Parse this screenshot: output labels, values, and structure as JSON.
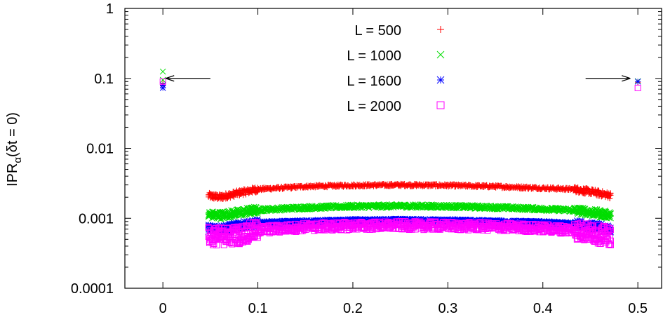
{
  "chart_data": {
    "type": "scatter",
    "title": "",
    "xlabel": "",
    "ylabel": "IPR",
    "ylabel_subscript": "α",
    "ylabel_suffix": "(δt = 0)",
    "ylabel_full": "IPRα(δt = 0)",
    "xlim": [
      -0.04,
      0.525
    ],
    "ylim": [
      0.0001,
      1
    ],
    "yscale": "log",
    "xticks": [
      {
        "value": 0,
        "label": "0"
      },
      {
        "value": 0.1,
        "label": "0.1"
      },
      {
        "value": 0.2,
        "label": "0.2"
      },
      {
        "value": 0.3,
        "label": "0.3"
      },
      {
        "value": 0.4,
        "label": "0.4"
      },
      {
        "value": 0.5,
        "label": "0.5"
      }
    ],
    "yticks": [
      {
        "value": 0.0001,
        "label": "0.0001"
      },
      {
        "value": 0.001,
        "label": "0.001"
      },
      {
        "value": 0.01,
        "label": "0.01"
      },
      {
        "value": 0.1,
        "label": "0.1"
      },
      {
        "value": 1,
        "label": "1"
      }
    ],
    "grid": false,
    "legend_position": "top-center",
    "series": [
      {
        "name": "L = 500",
        "marker": "plus",
        "color": "#ff0000",
        "band_points": [
          [
            0.048,
            0.0021
          ],
          [
            0.06,
            0.002
          ],
          [
            0.08,
            0.0023
          ],
          [
            0.1,
            0.0026
          ],
          [
            0.15,
            0.00285
          ],
          [
            0.2,
            0.00295
          ],
          [
            0.25,
            0.003
          ],
          [
            0.3,
            0.00295
          ],
          [
            0.35,
            0.00285
          ],
          [
            0.4,
            0.0027
          ],
          [
            0.433,
            0.0026
          ],
          [
            0.45,
            0.0024
          ],
          [
            0.465,
            0.0022
          ],
          [
            0.472,
            0.0021
          ]
        ],
        "spread": 0.04,
        "edge_points": [
          [
            0.0,
            0.085
          ],
          [
            0.0,
            0.078
          ],
          [
            0.5,
            0.088
          ]
        ]
      },
      {
        "name": "L = 1000",
        "marker": "cross",
        "color": "#00dd00",
        "band_points": [
          [
            0.048,
            0.00112
          ],
          [
            0.06,
            0.0011
          ],
          [
            0.08,
            0.0012
          ],
          [
            0.1,
            0.00132
          ],
          [
            0.15,
            0.00142
          ],
          [
            0.2,
            0.00148
          ],
          [
            0.25,
            0.0015
          ],
          [
            0.3,
            0.00148
          ],
          [
            0.35,
            0.00143
          ],
          [
            0.4,
            0.00136
          ],
          [
            0.433,
            0.0013
          ],
          [
            0.45,
            0.00122
          ],
          [
            0.465,
            0.00114
          ],
          [
            0.472,
            0.0011
          ]
        ],
        "spread": 0.05,
        "edge_points": [
          [
            0.0,
            0.125
          ],
          [
            0.0,
            0.095
          ],
          [
            0.5,
            0.091
          ]
        ]
      },
      {
        "name": "L = 1600",
        "marker": "star",
        "color": "#0000ff",
        "band_points": [
          [
            0.048,
            0.00072
          ],
          [
            0.06,
            0.00071
          ],
          [
            0.08,
            0.00078
          ],
          [
            0.1,
            0.00085
          ],
          [
            0.15,
            0.00089
          ],
          [
            0.2,
            0.00092
          ],
          [
            0.25,
            0.00093
          ],
          [
            0.3,
            0.00092
          ],
          [
            0.35,
            0.00089
          ],
          [
            0.4,
            0.00086
          ],
          [
            0.433,
            0.00083
          ],
          [
            0.45,
            0.00078
          ],
          [
            0.465,
            0.00073
          ],
          [
            0.472,
            0.0007
          ]
        ],
        "spread": 0.05,
        "edge_points": [
          [
            0.0,
            0.073
          ],
          [
            0.0,
            0.08
          ],
          [
            0.5,
            0.09
          ]
        ]
      },
      {
        "name": "L = 2000",
        "marker": "square",
        "color": "#ff00ff",
        "band_points": [
          [
            0.048,
            0.00056
          ],
          [
            0.06,
            0.00055
          ],
          [
            0.08,
            0.00058
          ],
          [
            0.1,
            0.00068
          ],
          [
            0.15,
            0.00075
          ],
          [
            0.2,
            0.00078
          ],
          [
            0.25,
            0.00079
          ],
          [
            0.3,
            0.00078
          ],
          [
            0.35,
            0.00076
          ],
          [
            0.4,
            0.00072
          ],
          [
            0.433,
            0.00068
          ],
          [
            0.45,
            0.00062
          ],
          [
            0.465,
            0.00057
          ],
          [
            0.472,
            0.00055
          ]
        ],
        "spread": 0.12,
        "edge_points": [
          [
            0.0,
            0.09
          ],
          [
            0.5,
            0.073
          ]
        ]
      }
    ],
    "annotations": [
      {
        "type": "arrow",
        "from": [
          0.05,
          0.1
        ],
        "to": [
          0.003,
          0.1
        ]
      },
      {
        "type": "arrow",
        "from": [
          0.445,
          0.1
        ],
        "to": [
          0.492,
          0.1
        ]
      }
    ]
  }
}
